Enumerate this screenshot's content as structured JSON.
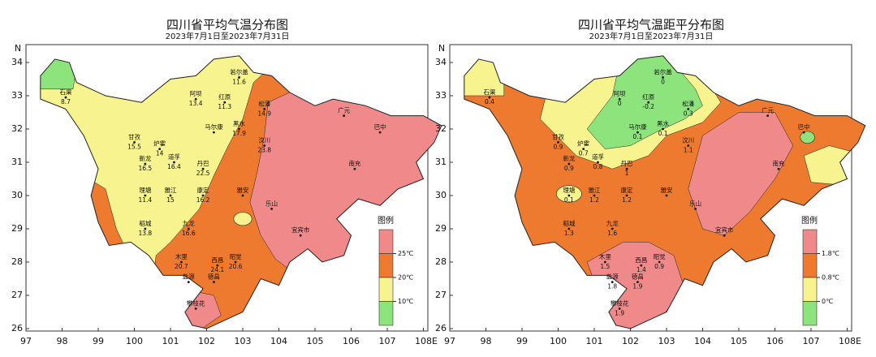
{
  "maps": [
    {
      "title": "四川省平均气温分布图",
      "subtitle": "2023年7月1日至2023年7月31日",
      "x_axis_label": "E",
      "y_axis_label": "N",
      "xticks": [
        97,
        98,
        99,
        100,
        101,
        102,
        103,
        104,
        105,
        106,
        107,
        108
      ],
      "yticks": [
        26,
        27,
        28,
        29,
        30,
        31,
        32,
        33,
        34
      ],
      "legend": {
        "title": "图例",
        "items": [
          {
            "label": "25℃",
            "color": "#f08a8a"
          },
          {
            "label": "20℃",
            "color": "#ee7a30"
          },
          {
            "label": "10℃",
            "color": "#f7f38e"
          },
          {
            "label": null,
            "color": "#8ee47c"
          }
        ]
      },
      "stations": [
        {
          "name": "石渠",
          "value": 8.7
        },
        {
          "name": "若尔盖",
          "value": 11.6
        },
        {
          "name": "阿坝",
          "value": 13.4
        },
        {
          "name": "红原",
          "value": 11.3
        },
        {
          "name": "松潘",
          "value": 14.9
        },
        {
          "name": "黑水",
          "value": 17.9
        },
        {
          "name": "马尔康",
          "value": null
        },
        {
          "name": "甘孜",
          "value": 15.5
        },
        {
          "name": "炉霍",
          "value": 14
        },
        {
          "name": "新龙",
          "value": 16.5
        },
        {
          "name": "道孚",
          "value": 16.4
        },
        {
          "name": "丹巴",
          "value": 22.5
        },
        {
          "name": "汶川",
          "value": 23.8
        },
        {
          "name": "理塘",
          "value": 11.4
        },
        {
          "name": "雅江",
          "value": 15
        },
        {
          "name": "康定",
          "value": 16.2
        },
        {
          "name": "稻城",
          "value": 13.8
        },
        {
          "name": "九龙",
          "value": 16.6
        },
        {
          "name": "木里",
          "value": 20.7
        },
        {
          "name": "西昌",
          "value": 24.1
        },
        {
          "name": "昭觉",
          "value": 20.6
        },
        {
          "name": "盐源",
          "value": null
        },
        {
          "name": "德昌",
          "value": null
        },
        {
          "name": "攀枝花",
          "value": null
        },
        {
          "name": "雅安",
          "value": null
        },
        {
          "name": "乐山",
          "value": null
        },
        {
          "name": "宜宾市",
          "value": null
        },
        {
          "name": "南充",
          "value": null
        },
        {
          "name": "巴中",
          "value": null
        },
        {
          "name": "广元",
          "value": null
        }
      ]
    },
    {
      "title": "四川省平均气温距平分布图",
      "subtitle": "2023年7月1日至2023年7月31日",
      "x_axis_label": "E",
      "y_axis_label": "N",
      "xticks": [
        97,
        98,
        99,
        100,
        101,
        102,
        103,
        104,
        105,
        106,
        107,
        108
      ],
      "yticks": [
        26,
        27,
        28,
        29,
        30,
        31,
        32,
        33,
        34
      ],
      "legend": {
        "title": "图例",
        "items": [
          {
            "label": "1.8℃",
            "color": "#f08a8a"
          },
          {
            "label": "0.8℃",
            "color": "#ee7a30"
          },
          {
            "label": "0℃",
            "color": "#f7f38e"
          },
          {
            "label": null,
            "color": "#8ee47c"
          }
        ]
      },
      "stations": [
        {
          "name": "石渠",
          "value": 0.4
        },
        {
          "name": "若尔盖",
          "value": 0
        },
        {
          "name": "阿坝",
          "value": 0
        },
        {
          "name": "红原",
          "value": -0.2
        },
        {
          "name": "松潘",
          "value": 0.3
        },
        {
          "name": "黑水",
          "value": 0.1
        },
        {
          "name": "马尔康",
          "value": 0.1
        },
        {
          "name": "甘孜",
          "value": 0.9
        },
        {
          "name": "炉霍",
          "value": 0.7
        },
        {
          "name": "新龙",
          "value": 0.9
        },
        {
          "name": "道孚",
          "value": 0.8
        },
        {
          "name": "丹巴",
          "value": 1.0
        },
        {
          "name": "汶川",
          "value": 1.1
        },
        {
          "name": "理塘",
          "value": 0.1
        },
        {
          "name": "雅江",
          "value": 1.2
        },
        {
          "name": "康定",
          "value": 1.2
        },
        {
          "name": "稻城",
          "value": 1.3
        },
        {
          "name": "九龙",
          "value": 1.6
        },
        {
          "name": "木里",
          "value": 1.5
        },
        {
          "name": "西昌",
          "value": 1.4
        },
        {
          "name": "昭觉",
          "value": 0.9
        },
        {
          "name": "盐源",
          "value": 1.8
        },
        {
          "name": "德昌",
          "value": 1.9
        },
        {
          "name": "攀枝花",
          "value": 1.9
        },
        {
          "name": "雅安",
          "value": null
        },
        {
          "name": "乐山",
          "value": null
        },
        {
          "name": "宜宾市",
          "value": null
        },
        {
          "name": "南充",
          "value": null
        },
        {
          "name": "巴中",
          "value": null
        },
        {
          "name": "广元",
          "value": null
        }
      ]
    }
  ]
}
